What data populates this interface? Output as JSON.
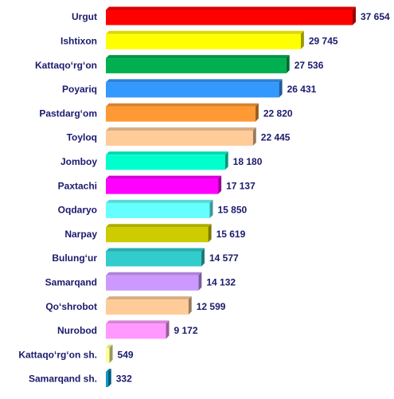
{
  "chart_data": {
    "type": "bar",
    "orientation": "horizontal",
    "categories": [
      "Urgut",
      "Ishtixon",
      "Kattaqo‘rg‘on",
      "Poyariq",
      "Pastdarg‘om",
      "Toyloq",
      "Jomboy",
      "Paxtachi",
      "Oqdaryo",
      "Narpay",
      "Bulung‘ur",
      "Samarqand",
      "Qo‘shrobot",
      "Nurobod",
      "Kattaqo‘rg‘on sh.",
      "Samarqand sh."
    ],
    "values": [
      37654,
      29745,
      27536,
      26431,
      22820,
      22445,
      18180,
      17137,
      15850,
      15619,
      14577,
      14132,
      12599,
      9172,
      549,
      332
    ],
    "value_labels": [
      "37 654",
      "29 745",
      "27 536",
      "26 431",
      "22 820",
      "22 445",
      "18 180",
      "17 137",
      "15 850",
      "15 619",
      "14 577",
      "14 132",
      "12 599",
      "9 172",
      "549",
      "332"
    ],
    "colors": [
      "#ff0000",
      "#ffff00",
      "#00b050",
      "#3399ff",
      "#ff9933",
      "#ffcc99",
      "#00ffcc",
      "#ff00ff",
      "#66ffff",
      "#cccc00",
      "#33cccc",
      "#cc99ff",
      "#ffcc99",
      "#ff99ff",
      "#ffff99",
      "#0099cc"
    ]
  }
}
